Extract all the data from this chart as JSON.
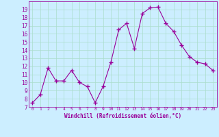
{
  "x": [
    0,
    1,
    2,
    3,
    4,
    5,
    6,
    7,
    8,
    9,
    10,
    11,
    12,
    13,
    14,
    15,
    16,
    17,
    18,
    19,
    20,
    21,
    22,
    23
  ],
  "y": [
    7.5,
    8.5,
    11.8,
    10.2,
    10.2,
    11.5,
    10.0,
    9.5,
    7.5,
    9.5,
    12.5,
    16.5,
    17.3,
    14.2,
    18.5,
    19.2,
    19.3,
    17.3,
    16.3,
    14.6,
    13.2,
    12.5,
    12.3,
    11.5
  ],
  "line_color": "#990099",
  "marker": "+",
  "marker_size": 4,
  "bg_color": "#cceeff",
  "grid_color": "#aaddcc",
  "xlabel": "Windchill (Refroidissement éolien,°C)",
  "xlabel_color": "#990099",
  "tick_color": "#990099",
  "ylim": [
    7,
    20
  ],
  "xlim": [
    -0.5,
    23.5
  ],
  "yticks": [
    7,
    8,
    9,
    10,
    11,
    12,
    13,
    14,
    15,
    16,
    17,
    18,
    19
  ],
  "xticks": [
    0,
    1,
    2,
    3,
    4,
    5,
    6,
    7,
    8,
    9,
    10,
    11,
    12,
    13,
    14,
    15,
    16,
    17,
    18,
    19,
    20,
    21,
    22,
    23
  ]
}
